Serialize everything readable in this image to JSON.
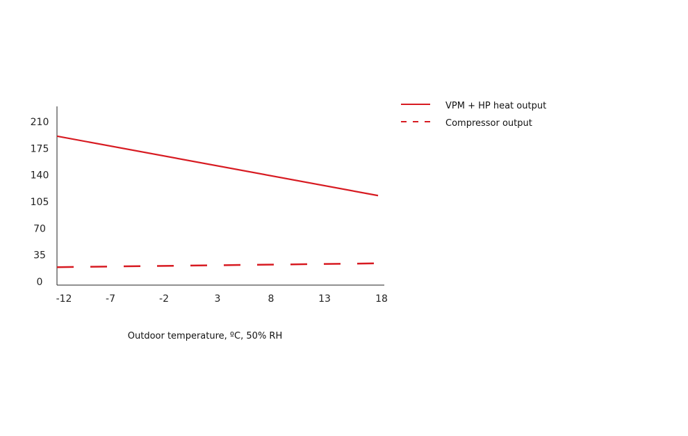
{
  "chart_data": {
    "type": "line",
    "x": [
      -12,
      -7,
      -2,
      3,
      8,
      13,
      18
    ],
    "x_tick_labels": [
      "-12",
      "-7",
      "-2",
      "3",
      "8",
      "13",
      "18"
    ],
    "y_ticks": [
      0,
      35,
      70,
      105,
      140,
      175,
      210
    ],
    "y_tick_labels": [
      "0",
      "35",
      "70",
      "105",
      "140",
      "175",
      "210"
    ],
    "xlim": [
      -12,
      18
    ],
    "ylim": [
      0,
      230
    ],
    "xlabel": "Outdoor temperature, ºC, 50% RH",
    "ylabel": "",
    "title": "",
    "grid": false,
    "legend_position": "right",
    "series": [
      {
        "name": "VPM + HP heat output",
        "style": "solid",
        "color": "#d71a21",
        "x": [
          -12,
          18
        ],
        "values": [
          191,
          113
        ]
      },
      {
        "name": "Compressor output",
        "style": "dashed",
        "color": "#d71a21",
        "x": [
          -12,
          18
        ],
        "values": [
          19,
          24
        ]
      }
    ]
  }
}
